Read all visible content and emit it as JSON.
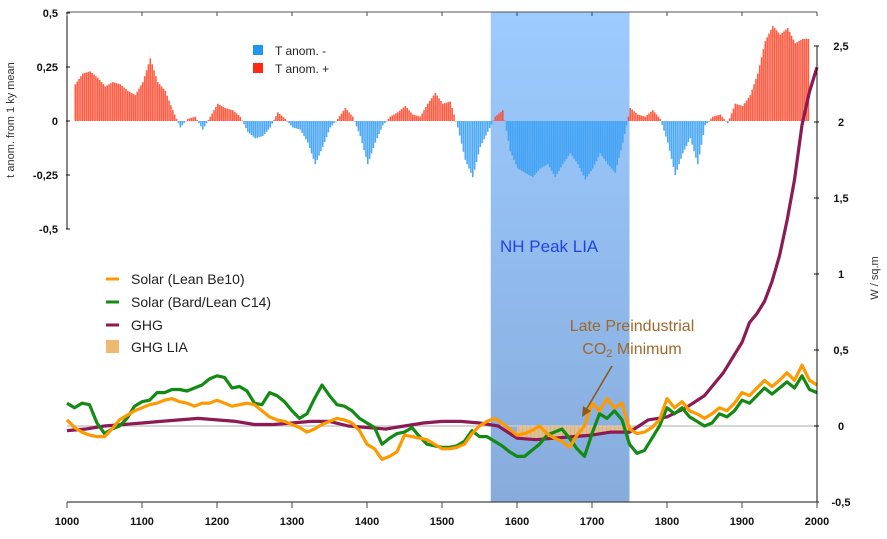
{
  "chart_data": {
    "type": "bar+line",
    "x_axis": {
      "range": [
        1000,
        2000
      ],
      "ticks": [
        "1000",
        "1100",
        "1200",
        "1300",
        "1400",
        "1500",
        "1600",
        "1700",
        "1800",
        "1900",
        "2000"
      ]
    },
    "left_axis": {
      "label": "t anom. from 1 ky mean",
      "range": [
        -0.5,
        0.5
      ],
      "ticks": [
        "0,5",
        "0,25",
        "0",
        "-0,25",
        "-0,5"
      ]
    },
    "right_axis": {
      "label": "W / sq.m",
      "range": [
        -0.5,
        2.5
      ],
      "ticks": [
        "2,5",
        "2",
        "1,5",
        "1",
        "0,5",
        "0",
        "-0,5"
      ]
    },
    "temperature_legend": [
      {
        "label": "T anom. -",
        "color": "#2196f3"
      },
      {
        "label": "T anom. +",
        "color": "#ff2a10"
      }
    ],
    "forcing_legend": [
      {
        "label": "Solar (Lean Be10)",
        "color": "#ff9900",
        "kind": "line"
      },
      {
        "label": "Solar (Bard/Lean C14)",
        "color": "#138a13",
        "kind": "line"
      },
      {
        "label": "GHG",
        "color": "#8b1a55",
        "kind": "line"
      },
      {
        "label": "GHG LIA",
        "color": "#f0b870",
        "kind": "box"
      }
    ],
    "annotations": {
      "lia_band": {
        "label": "NH Peak LIA",
        "x_start": 1565,
        "x_end": 1750,
        "color": "#7fb4ee"
      },
      "co2_min": {
        "line1": "Late Preindustrial",
        "line2_main": "CO",
        "line2_sub": "2",
        "line2_end": " Minimum",
        "arrow_to_year": 1690
      }
    },
    "temperature_anomaly": {
      "x": [
        1010,
        1020,
        1030,
        1040,
        1050,
        1060,
        1070,
        1080,
        1090,
        1100,
        1110,
        1120,
        1130,
        1140,
        1150,
        1160,
        1170,
        1180,
        1190,
        1200,
        1210,
        1220,
        1230,
        1240,
        1250,
        1260,
        1270,
        1280,
        1290,
        1300,
        1310,
        1320,
        1330,
        1340,
        1350,
        1360,
        1370,
        1380,
        1390,
        1400,
        1410,
        1420,
        1430,
        1440,
        1450,
        1460,
        1470,
        1480,
        1490,
        1500,
        1510,
        1520,
        1530,
        1540,
        1550,
        1560,
        1570,
        1580,
        1590,
        1600,
        1610,
        1620,
        1630,
        1640,
        1650,
        1660,
        1670,
        1680,
        1690,
        1700,
        1710,
        1720,
        1730,
        1740,
        1750,
        1760,
        1770,
        1780,
        1790,
        1800,
        1810,
        1820,
        1830,
        1840,
        1850,
        1860,
        1870,
        1880,
        1890,
        1900,
        1910,
        1920,
        1930,
        1940,
        1950,
        1960,
        1970,
        1980
      ],
      "values": [
        0.17,
        0.22,
        0.23,
        0.2,
        0.16,
        0.18,
        0.17,
        0.14,
        0.12,
        0.18,
        0.29,
        0.18,
        0.14,
        0.05,
        -0.03,
        0.01,
        0.02,
        -0.04,
        0.02,
        0.08,
        0.06,
        0.05,
        0.02,
        -0.05,
        -0.08,
        -0.07,
        -0.03,
        0.04,
        0.01,
        -0.03,
        -0.04,
        -0.1,
        -0.2,
        -0.12,
        -0.03,
        0.01,
        0.06,
        0.02,
        -0.07,
        -0.2,
        -0.1,
        -0.02,
        0.02,
        0.04,
        0.07,
        0.03,
        0.02,
        0.08,
        0.13,
        0.08,
        0.09,
        -0.03,
        -0.18,
        -0.26,
        -0.12,
        -0.05,
        0.02,
        0.05,
        -0.14,
        -0.22,
        -0.24,
        -0.26,
        -0.22,
        -0.2,
        -0.26,
        -0.2,
        -0.15,
        -0.2,
        -0.27,
        -0.22,
        -0.15,
        -0.2,
        -0.24,
        -0.1,
        0.06,
        0.03,
        0.02,
        0.05,
        0.01,
        -0.1,
        -0.25,
        -0.15,
        -0.08,
        -0.2,
        -0.02,
        0.02,
        0.03,
        -0.01,
        0.08,
        0.07,
        0.12,
        0.22,
        0.37,
        0.44,
        0.4,
        0.43,
        0.36,
        0.38
      ]
    },
    "series": [
      {
        "name": "Solar (Lean Be10)",
        "axis": "right",
        "x": [
          1000,
          1010,
          1020,
          1030,
          1040,
          1050,
          1060,
          1070,
          1080,
          1090,
          1100,
          1110,
          1120,
          1130,
          1140,
          1150,
          1160,
          1170,
          1180,
          1190,
          1200,
          1210,
          1220,
          1230,
          1240,
          1250,
          1260,
          1270,
          1280,
          1290,
          1300,
          1310,
          1320,
          1330,
          1340,
          1350,
          1360,
          1370,
          1380,
          1390,
          1400,
          1410,
          1420,
          1430,
          1440,
          1450,
          1460,
          1470,
          1480,
          1490,
          1500,
          1510,
          1520,
          1530,
          1540,
          1550,
          1560,
          1570,
          1580,
          1590,
          1600,
          1610,
          1620,
          1630,
          1640,
          1650,
          1660,
          1670,
          1680,
          1690,
          1700,
          1710,
          1720,
          1730,
          1740,
          1750,
          1760,
          1770,
          1780,
          1790,
          1800,
          1810,
          1820,
          1830,
          1840,
          1850,
          1860,
          1870,
          1880,
          1890,
          1900,
          1910,
          1920,
          1930,
          1940,
          1950,
          1960,
          1970,
          1980,
          1990,
          2000
        ],
        "values": [
          0.04,
          -0.01,
          -0.04,
          -0.06,
          -0.07,
          -0.07,
          -0.02,
          0.04,
          0.07,
          0.1,
          0.12,
          0.14,
          0.15,
          0.17,
          0.18,
          0.16,
          0.15,
          0.13,
          0.15,
          0.15,
          0.17,
          0.15,
          0.13,
          0.14,
          0.15,
          0.14,
          0.1,
          0.06,
          0.04,
          0.03,
          0.01,
          -0.01,
          -0.04,
          -0.02,
          0.01,
          0.03,
          0.05,
          0.04,
          0.02,
          -0.03,
          -0.12,
          -0.15,
          -0.22,
          -0.2,
          -0.17,
          -0.06,
          -0.07,
          -0.08,
          -0.09,
          -0.12,
          -0.15,
          -0.15,
          -0.14,
          -0.12,
          -0.05,
          0.0,
          0.03,
          0.05,
          0.02,
          -0.02,
          -0.06,
          -0.05,
          -0.03,
          0.0,
          -0.05,
          -0.08,
          -0.1,
          -0.14,
          -0.06,
          0.0,
          0.15,
          0.1,
          0.18,
          0.12,
          0.15,
          -0.02,
          -0.05,
          -0.04,
          -0.01,
          0.04,
          0.18,
          0.12,
          0.16,
          0.1,
          0.08,
          0.05,
          0.08,
          0.12,
          0.1,
          0.15,
          0.22,
          0.2,
          0.25,
          0.3,
          0.26,
          0.3,
          0.35,
          0.3,
          0.4,
          0.3,
          0.27
        ]
      },
      {
        "name": "Solar (Bard/Lean C14)",
        "axis": "right",
        "x": [
          1000,
          1010,
          1020,
          1030,
          1040,
          1050,
          1060,
          1070,
          1080,
          1090,
          1100,
          1110,
          1120,
          1130,
          1140,
          1150,
          1160,
          1170,
          1180,
          1190,
          1200,
          1210,
          1220,
          1230,
          1240,
          1250,
          1260,
          1270,
          1280,
          1290,
          1300,
          1310,
          1320,
          1330,
          1340,
          1350,
          1360,
          1370,
          1380,
          1390,
          1400,
          1410,
          1420,
          1430,
          1440,
          1450,
          1460,
          1470,
          1480,
          1490,
          1500,
          1510,
          1520,
          1530,
          1540,
          1550,
          1560,
          1570,
          1580,
          1590,
          1600,
          1610,
          1620,
          1630,
          1640,
          1650,
          1660,
          1670,
          1680,
          1690,
          1700,
          1710,
          1720,
          1730,
          1740,
          1750,
          1760,
          1770,
          1780,
          1790,
          1800,
          1810,
          1820,
          1830,
          1840,
          1850,
          1860,
          1870,
          1880,
          1890,
          1900,
          1910,
          1920,
          1930,
          1940,
          1950,
          1960,
          1970,
          1980,
          1990,
          2000
        ],
        "values": [
          0.15,
          0.12,
          0.15,
          0.14,
          0.02,
          -0.05,
          -0.02,
          0.0,
          0.05,
          0.13,
          0.16,
          0.17,
          0.22,
          0.22,
          0.24,
          0.24,
          0.23,
          0.25,
          0.27,
          0.31,
          0.33,
          0.32,
          0.25,
          0.26,
          0.23,
          0.15,
          0.14,
          0.22,
          0.2,
          0.16,
          0.1,
          0.05,
          0.08,
          0.18,
          0.27,
          0.2,
          0.14,
          0.13,
          0.1,
          0.05,
          0.02,
          -0.01,
          -0.12,
          -0.08,
          -0.05,
          -0.04,
          -0.01,
          -0.07,
          -0.12,
          -0.13,
          -0.14,
          -0.14,
          -0.13,
          -0.1,
          -0.03,
          -0.07,
          -0.07,
          -0.1,
          -0.13,
          -0.17,
          -0.2,
          -0.2,
          -0.16,
          -0.12,
          -0.06,
          -0.04,
          -0.02,
          -0.08,
          -0.15,
          -0.2,
          -0.05,
          0.08,
          0.05,
          0.1,
          0.04,
          -0.12,
          -0.18,
          -0.16,
          -0.08,
          0.0,
          0.12,
          0.08,
          0.12,
          0.06,
          0.03,
          0.0,
          0.02,
          0.08,
          0.06,
          0.1,
          0.17,
          0.15,
          0.2,
          0.25,
          0.21,
          0.25,
          0.29,
          0.25,
          0.33,
          0.24,
          0.22
        ]
      },
      {
        "name": "GHG",
        "axis": "right",
        "x": [
          1000,
          1025,
          1050,
          1075,
          1100,
          1125,
          1150,
          1175,
          1200,
          1225,
          1250,
          1275,
          1300,
          1325,
          1350,
          1375,
          1400,
          1425,
          1450,
          1475,
          1500,
          1525,
          1550,
          1575,
          1600,
          1625,
          1650,
          1675,
          1700,
          1725,
          1750,
          1775,
          1800,
          1825,
          1850,
          1875,
          1900,
          1910,
          1920,
          1930,
          1940,
          1950,
          1960,
          1970,
          1980,
          1990,
          2000
        ],
        "values": [
          -0.03,
          -0.02,
          0.0,
          0.01,
          0.02,
          0.03,
          0.04,
          0.05,
          0.04,
          0.03,
          0.01,
          0.01,
          0.02,
          0.03,
          0.03,
          0.0,
          -0.01,
          -0.02,
          0.0,
          0.02,
          0.03,
          0.03,
          0.02,
          0.0,
          -0.08,
          -0.09,
          -0.08,
          -0.07,
          -0.06,
          -0.04,
          -0.04,
          0.04,
          0.06,
          0.12,
          0.2,
          0.35,
          0.55,
          0.68,
          0.74,
          0.82,
          0.95,
          1.12,
          1.35,
          1.62,
          1.98,
          2.2,
          2.36
        ]
      },
      {
        "name": "GHG LIA",
        "axis": "right",
        "kind": "area",
        "x_range": [
          1600,
          1780
        ],
        "baseline": 0.0,
        "color": "#f0b870"
      }
    ]
  }
}
